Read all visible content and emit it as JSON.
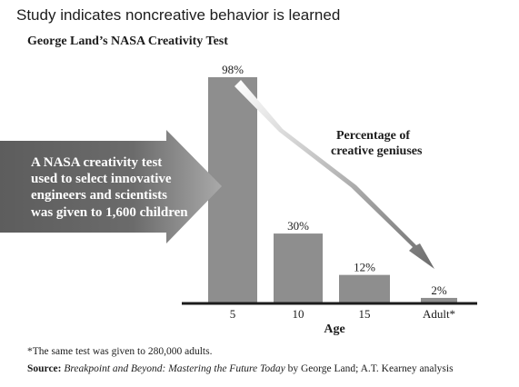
{
  "headline": "Study indicates noncreative behavior is learned",
  "chart_data": {
    "type": "bar",
    "title": "George Land’s NASA Creativity Test",
    "categories": [
      "5",
      "10",
      "15",
      "Adult*"
    ],
    "values": [
      98,
      30,
      12,
      2
    ],
    "value_labels": [
      "98%",
      "30%",
      "12%",
      "2%"
    ],
    "xlabel": "Age",
    "ylabel": "",
    "ylim": [
      0,
      100
    ],
    "grid": false,
    "bar_color": "#8e8e8e",
    "arrow_label_lines": [
      "Percentage of",
      "creative geniuses"
    ],
    "callout_lines": [
      "A NASA creativity test",
      "used to select innovative",
      "engineers and scientists",
      "was given to 1,600 children"
    ]
  },
  "footnote": "*The same test was given to 280,000 adults.",
  "source": {
    "label": "Source:",
    "book": "Breakpoint and Beyond: Mastering the Future Today",
    "rest": " by George Land; A.T. Kearney analysis"
  }
}
